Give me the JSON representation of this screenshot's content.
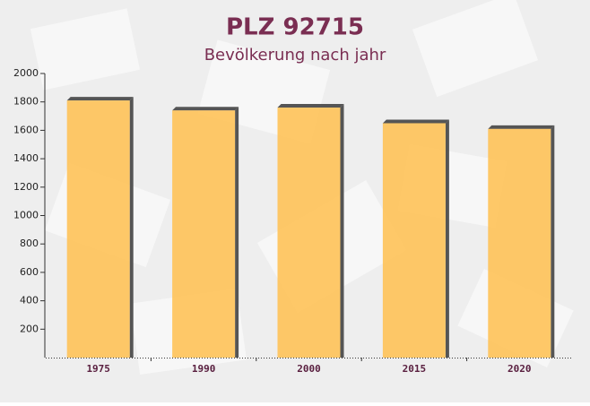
{
  "chart_data": {
    "type": "bar",
    "title": "PLZ 92715",
    "subtitle": "Bevölkerung nach jahr",
    "categories": [
      "1975",
      "1990",
      "2000",
      "2015",
      "2020"
    ],
    "values": [
      1810,
      1740,
      1760,
      1650,
      1610
    ],
    "color": "#ffc04f",
    "ylim": [
      0,
      2000
    ],
    "yticks": [
      200,
      400,
      600,
      800,
      1000,
      1200,
      1400,
      1600,
      1800,
      2000
    ],
    "grid": false
  }
}
